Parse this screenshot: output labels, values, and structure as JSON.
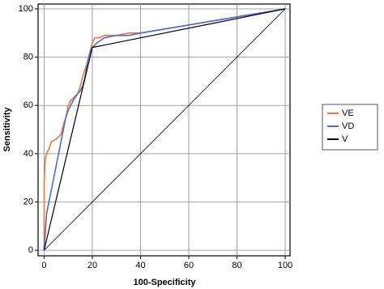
{
  "chart_data": {
    "type": "line",
    "x_label": "100-Specificity",
    "y_label": "Sensitivity",
    "xlim": [
      -2.5,
      102
    ],
    "ylim": [
      -2.3,
      102
    ],
    "xticks": [
      0,
      20,
      40,
      60,
      80,
      100
    ],
    "yticks": [
      0,
      20,
      40,
      60,
      80,
      100
    ],
    "grid": true,
    "legend": "right",
    "reference_line": {
      "color": "#000000",
      "x": [
        0,
        100
      ],
      "values": [
        0,
        100
      ]
    },
    "series": [
      {
        "name": "VE",
        "color": "#f07a3c",
        "x": [
          0,
          0,
          0,
          0.5,
          1,
          2,
          3,
          5,
          7,
          8,
          9,
          10,
          11,
          12,
          14,
          15,
          16,
          17,
          18,
          19,
          20,
          21,
          23,
          25,
          30,
          35,
          40,
          100
        ],
        "values": [
          0,
          20,
          28,
          38,
          40,
          42,
          45,
          46,
          48,
          52,
          55,
          60,
          62,
          63,
          65,
          68,
          72,
          75,
          78,
          82,
          86,
          88,
          88,
          89,
          89,
          90,
          90,
          100
        ]
      },
      {
        "name": "VD",
        "color": "#4a6cd4",
        "x": [
          0,
          1,
          2,
          3,
          4,
          5,
          6,
          7,
          8,
          9,
          10,
          11,
          12,
          14,
          15,
          16,
          17,
          18,
          19,
          20,
          22,
          25,
          30,
          35,
          40,
          100
        ],
        "values": [
          0,
          15,
          20,
          25,
          30,
          35,
          40,
          45,
          50,
          55,
          58,
          60,
          62,
          65,
          66,
          68,
          72,
          78,
          82,
          84,
          86,
          88,
          89,
          89,
          90,
          100
        ]
      },
      {
        "name": "V",
        "color": "#000000",
        "x": [
          0,
          20,
          100
        ],
        "values": [
          0,
          84,
          100
        ]
      }
    ]
  }
}
